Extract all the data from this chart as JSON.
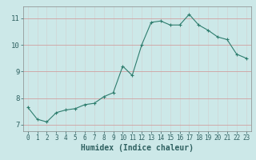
{
  "title": "",
  "xlabel": "Humidex (Indice chaleur)",
  "ylabel": "",
  "x": [
    0,
    1,
    2,
    3,
    4,
    5,
    6,
    7,
    8,
    9,
    10,
    11,
    12,
    13,
    14,
    15,
    16,
    17,
    18,
    19,
    20,
    21,
    22,
    23
  ],
  "y": [
    7.65,
    7.2,
    7.1,
    7.45,
    7.55,
    7.6,
    7.75,
    7.8,
    8.05,
    8.2,
    9.2,
    8.85,
    10.0,
    10.85,
    10.9,
    10.75,
    10.75,
    11.15,
    10.75,
    10.55,
    10.3,
    10.2,
    9.65,
    9.5
  ],
  "line_color": "#2e7d6e",
  "marker": "+",
  "marker_color": "#2e7d6e",
  "bg_color": "#cce8e8",
  "grid_color": "#b0c8c8",
  "grid_color_minor": "#daeaea",
  "ylim": [
    6.75,
    11.45
  ],
  "xlim": [
    -0.5,
    23.5
  ],
  "yticks": [
    7,
    8,
    9,
    10,
    11
  ],
  "xticks": [
    0,
    1,
    2,
    3,
    4,
    5,
    6,
    7,
    8,
    9,
    10,
    11,
    12,
    13,
    14,
    15,
    16,
    17,
    18,
    19,
    20,
    21,
    22,
    23
  ],
  "tick_fontsize": 5.5,
  "xlabel_fontsize": 7,
  "ytick_fontsize": 6.5,
  "label_color": "#2e6060"
}
